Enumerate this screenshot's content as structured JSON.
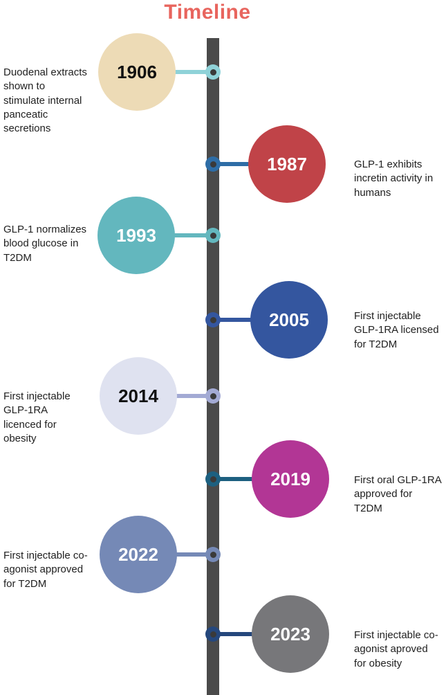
{
  "title": "Timeline",
  "colors": {
    "title": "#e8655e",
    "bar": "#4a4a4a",
    "node_core": "#3a3a3a",
    "label_text": "#212121"
  },
  "events": [
    {
      "year": "1906",
      "side": "left",
      "description": "Duodenal extracts shown to stimulate internal panceatic secretions",
      "circle_color": "#eddbb6",
      "year_text_color": "#111111",
      "connector_color": "#8fd2d8"
    },
    {
      "year": "1987",
      "side": "right",
      "description": "GLP-1 exhibits incretin activity in humans",
      "circle_color": "#c04348",
      "year_text_color": "#ffffff",
      "connector_color": "#2e6da6"
    },
    {
      "year": "1993",
      "side": "left",
      "description": "GLP-1 normalizes blood glucose in T2DM",
      "circle_color": "#63b7be",
      "year_text_color": "#ffffff",
      "connector_color": "#63b7be"
    },
    {
      "year": "2005",
      "side": "right",
      "description": "First injectable GLP-1RA licensed for T2DM",
      "circle_color": "#34569f",
      "year_text_color": "#ffffff",
      "connector_color": "#34569f"
    },
    {
      "year": "2014",
      "side": "left",
      "description": "First injectable GLP-1RA licenced for obesity",
      "circle_color": "#dfe2f0",
      "year_text_color": "#111111",
      "connector_color": "#a3aad4"
    },
    {
      "year": "2019",
      "side": "right",
      "description": "First oral GLP-1RA approved for T2DM",
      "circle_color": "#b23695",
      "year_text_color": "#ffffff",
      "connector_color": "#1d6080"
    },
    {
      "year": "2022",
      "side": "left",
      "description": "First injectable co-agonist approved for T2DM",
      "circle_color": "#7589b6",
      "year_text_color": "#ffffff",
      "connector_color": "#7589b6"
    },
    {
      "year": "2023",
      "side": "right",
      "description": "First injectable co-agonist aproved for obesity",
      "circle_color": "#77777a",
      "year_text_color": "#ffffff",
      "connector_color": "#25477c"
    }
  ]
}
